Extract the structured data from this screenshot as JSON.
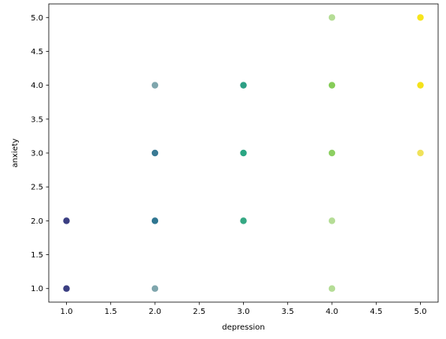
{
  "chart_data": {
    "type": "scatter",
    "xlabel": "depression",
    "ylabel": "anxiety",
    "xlim": [
      0.8,
      5.2
    ],
    "ylim": [
      0.8,
      5.2
    ],
    "xticks": [
      "1.0",
      "1.5",
      "2.0",
      "2.5",
      "3.0",
      "3.5",
      "4.0",
      "4.5",
      "5.0"
    ],
    "yticks": [
      "1.0",
      "1.5",
      "2.0",
      "2.5",
      "3.0",
      "3.5",
      "4.0",
      "4.5",
      "5.0"
    ],
    "grid": false,
    "points": [
      {
        "x": 1,
        "y": 1,
        "color": "#3b3f82"
      },
      {
        "x": 1,
        "y": 2,
        "color": "#3b3f82"
      },
      {
        "x": 2,
        "y": 1,
        "color": "#7fa6ad"
      },
      {
        "x": 2,
        "y": 2,
        "color": "#2f7691"
      },
      {
        "x": 2,
        "y": 3,
        "color": "#3a7a94"
      },
      {
        "x": 2,
        "y": 4,
        "color": "#7fa6ad"
      },
      {
        "x": 3,
        "y": 2,
        "color": "#35a883"
      },
      {
        "x": 3,
        "y": 3,
        "color": "#2aa683"
      },
      {
        "x": 3,
        "y": 4,
        "color": "#2c9f84"
      },
      {
        "x": 4,
        "y": 1,
        "color": "#b5dd96"
      },
      {
        "x": 4,
        "y": 2,
        "color": "#b5dd96"
      },
      {
        "x": 4,
        "y": 3,
        "color": "#8dcf62"
      },
      {
        "x": 4,
        "y": 4,
        "color": "#86cc58"
      },
      {
        "x": 4,
        "y": 5,
        "color": "#b5dd96"
      },
      {
        "x": 5,
        "y": 3,
        "color": "#f0e25a"
      },
      {
        "x": 5,
        "y": 4,
        "color": "#f4e21a"
      },
      {
        "x": 5,
        "y": 5,
        "color": "#f7e51c"
      }
    ]
  }
}
